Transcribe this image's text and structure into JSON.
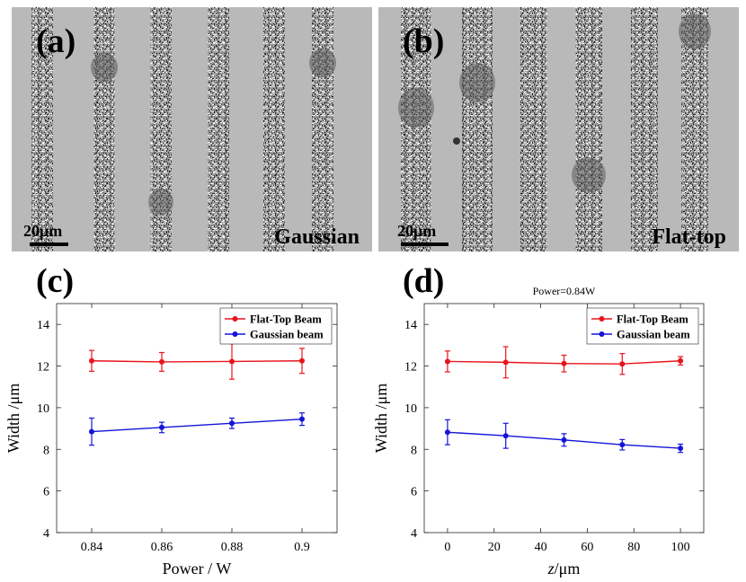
{
  "micrographs": [
    {
      "label": "(a)",
      "beam": "Gaussian",
      "scale_bar": "20μm",
      "stripe_count": 6
    },
    {
      "label": "(b)",
      "beam": "Flat-top",
      "scale_bar": "20μm",
      "stripe_count": 6
    }
  ],
  "colors": {
    "flat_top": "#e8141b",
    "gaussian": "#1414d8",
    "axis": "#262626",
    "sem_background": "#b8b8b8"
  },
  "chart_data": [
    {
      "panel": "(c)",
      "type": "line",
      "title": "",
      "xlabel": "Power / W",
      "ylabel": "Width /μm",
      "xlim": [
        0.83,
        0.91
      ],
      "ylim": [
        4,
        15
      ],
      "x_ticks": [
        0.84,
        0.86,
        0.88,
        0.9
      ],
      "x_tick_labels": [
        "0.84",
        "0.86",
        "0.88",
        "0.9"
      ],
      "y_ticks": [
        4,
        6,
        8,
        10,
        12,
        14
      ],
      "y_tick_labels": [
        "4",
        "6",
        "8",
        "10",
        "12",
        "14"
      ],
      "legend": "top-right",
      "series": [
        {
          "name": "Flat-Top Beam",
          "color": "#e8141b",
          "x": [
            0.84,
            0.86,
            0.88,
            0.9
          ],
          "y": [
            12.25,
            12.2,
            12.22,
            12.25
          ],
          "err": [
            0.5,
            0.45,
            0.85,
            0.6
          ]
        },
        {
          "name": "Gaussian beam",
          "color": "#1414d8",
          "x": [
            0.84,
            0.86,
            0.88,
            0.9
          ],
          "y": [
            8.85,
            9.05,
            9.25,
            9.45
          ],
          "err": [
            0.65,
            0.25,
            0.25,
            0.3
          ]
        }
      ]
    },
    {
      "panel": "(d)",
      "type": "line",
      "title": "Power=0.84W",
      "xlabel_italic": "z",
      "xlabel_rest": "/μm",
      "ylabel": "Width /μm",
      "xlim": [
        -10,
        110
      ],
      "ylim": [
        4,
        15
      ],
      "x_ticks": [
        0,
        20,
        40,
        60,
        80,
        100
      ],
      "x_tick_labels": [
        "0",
        "20",
        "40",
        "60",
        "80",
        "100"
      ],
      "y_ticks": [
        4,
        6,
        8,
        10,
        12,
        14
      ],
      "y_tick_labels": [
        "4",
        "6",
        "8",
        "10",
        "12",
        "14"
      ],
      "legend": "top-right",
      "series": [
        {
          "name": "Flat-Top Beam",
          "color": "#e8141b",
          "x": [
            0,
            25,
            50,
            75,
            100
          ],
          "y": [
            12.22,
            12.18,
            12.12,
            12.1,
            12.25
          ],
          "err": [
            0.5,
            0.75,
            0.4,
            0.5,
            0.2
          ]
        },
        {
          "name": "Gaussian beam",
          "color": "#1414d8",
          "x": [
            0,
            25,
            50,
            75,
            100
          ],
          "y": [
            8.82,
            8.65,
            8.45,
            8.22,
            8.05
          ],
          "err": [
            0.6,
            0.6,
            0.3,
            0.25,
            0.2
          ]
        }
      ]
    }
  ]
}
